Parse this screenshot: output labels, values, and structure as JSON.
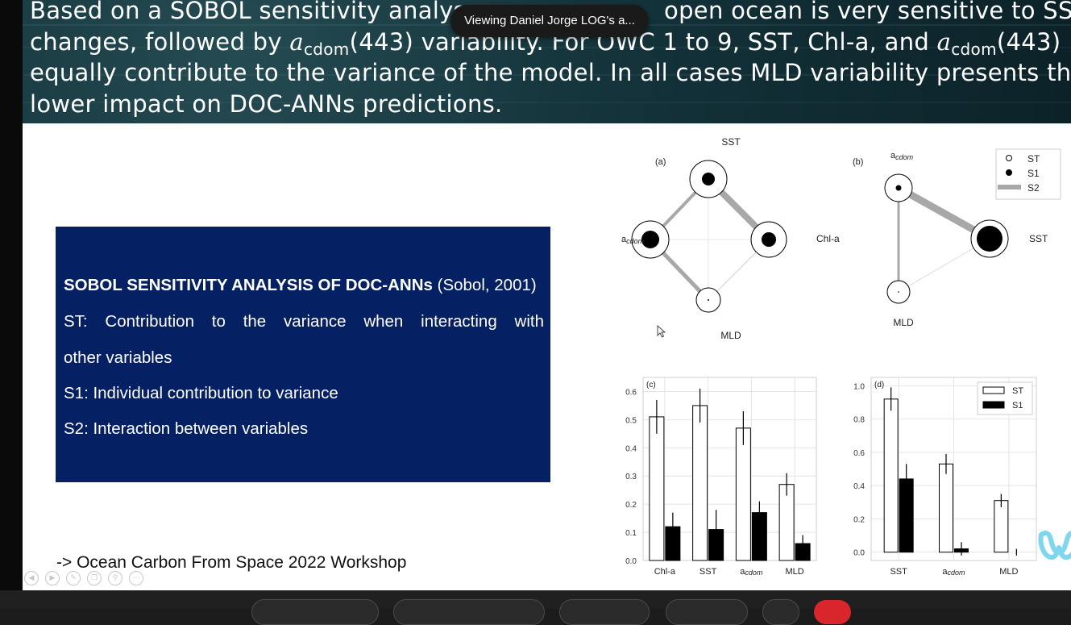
{
  "meeting_toast": "Viewing Daniel Jorge LOG's a...",
  "header": {
    "line1_a": "Based on a SOBOL sensitivity analys",
    "line1_b": "open ocean is very sensitive to SST",
    "line2_a": "changes, followed by ",
    "line2_a_sym": "a",
    "line2_a_sub": "cdom",
    "line2_b": "(443) variability. For OWC 1 to 9, SST, Chl-a, and ",
    "line2_c_sym": "a",
    "line2_c_sub": "cdom",
    "line2_d": "(443)",
    "line3": "equally contribute to the variance of the model. In all cases MLD variability presents the",
    "line4": "lower impact on DOC-ANNs predictions."
  },
  "sobol_box": {
    "title_bold": "SOBOL SENSITIVITY ANALYSIS OF DOC-ANNs",
    "title_ref": " (Sobol, 2001)",
    "st_line1": "ST: Contribution to the variance when interacting with",
    "st_line2": "other variables",
    "s1": "S1: Individual contribution to variance",
    "s2": "S2: Interaction between variables"
  },
  "footer_link": "-> Ocean Carbon From Space 2022 Workshop",
  "network_a": {
    "panel_label": "(a)",
    "nodes": {
      "sst": "SST",
      "acdom_sym": "a",
      "acdom_sub": "cdom",
      "chla": "Chl-a",
      "mld": "MLD"
    }
  },
  "network_b": {
    "panel_label": "(b)",
    "nodes": {
      "acdom_sym": "a",
      "acdom_sub": "cdom",
      "sst": "SST",
      "mld": "MLD"
    },
    "legend": [
      "ST",
      "S1",
      "S2"
    ]
  },
  "chart_data": [
    {
      "type": "bar",
      "panel_label": "(c)",
      "categories": [
        "Chl-a",
        "SST",
        "acdom",
        "MLD"
      ],
      "series": [
        {
          "values": [
            0.51,
            0.55,
            0.47,
            0.27
          ],
          "errors": [
            0.06,
            0.06,
            0.06,
            0.04
          ],
          "style": "open"
        },
        {
          "values": [
            0.12,
            0.11,
            0.17,
            0.06
          ],
          "errors": [
            0.05,
            0.07,
            0.04,
            0.03
          ],
          "style": "filled"
        }
      ],
      "ylim": [
        0,
        0.65
      ],
      "yticks": [
        "0.0",
        "0.1",
        "0.2",
        "0.3",
        "0.4",
        "0.5",
        "0.6"
      ],
      "ytick_values": [
        0,
        0.1,
        0.2,
        0.3,
        0.4,
        0.5,
        0.6
      ],
      "grid": true
    },
    {
      "type": "bar",
      "panel_label": "(d)",
      "categories": [
        "SST",
        "acdom",
        "MLD"
      ],
      "series": [
        {
          "name": "ST",
          "values": [
            0.92,
            0.53,
            0.31
          ],
          "errors": [
            0.07,
            0.06,
            0.04
          ],
          "style": "open"
        },
        {
          "name": "S1",
          "values": [
            0.44,
            0.02,
            0.0
          ],
          "errors": [
            0.09,
            0.04,
            0.02
          ],
          "style": "filled"
        }
      ],
      "ylim": [
        -0.05,
        1.05
      ],
      "yticks": [
        "0.0",
        "0.2",
        "0.4",
        "0.6",
        "0.8",
        "1.0"
      ],
      "ytick_values": [
        0,
        0.2,
        0.4,
        0.6,
        0.8,
        1.0
      ],
      "legend_position": "top-right",
      "grid": true
    }
  ],
  "colors": {
    "slide_header": "#14333b",
    "box_bg": "#052063",
    "webex_logo": "#6fd0e8"
  }
}
